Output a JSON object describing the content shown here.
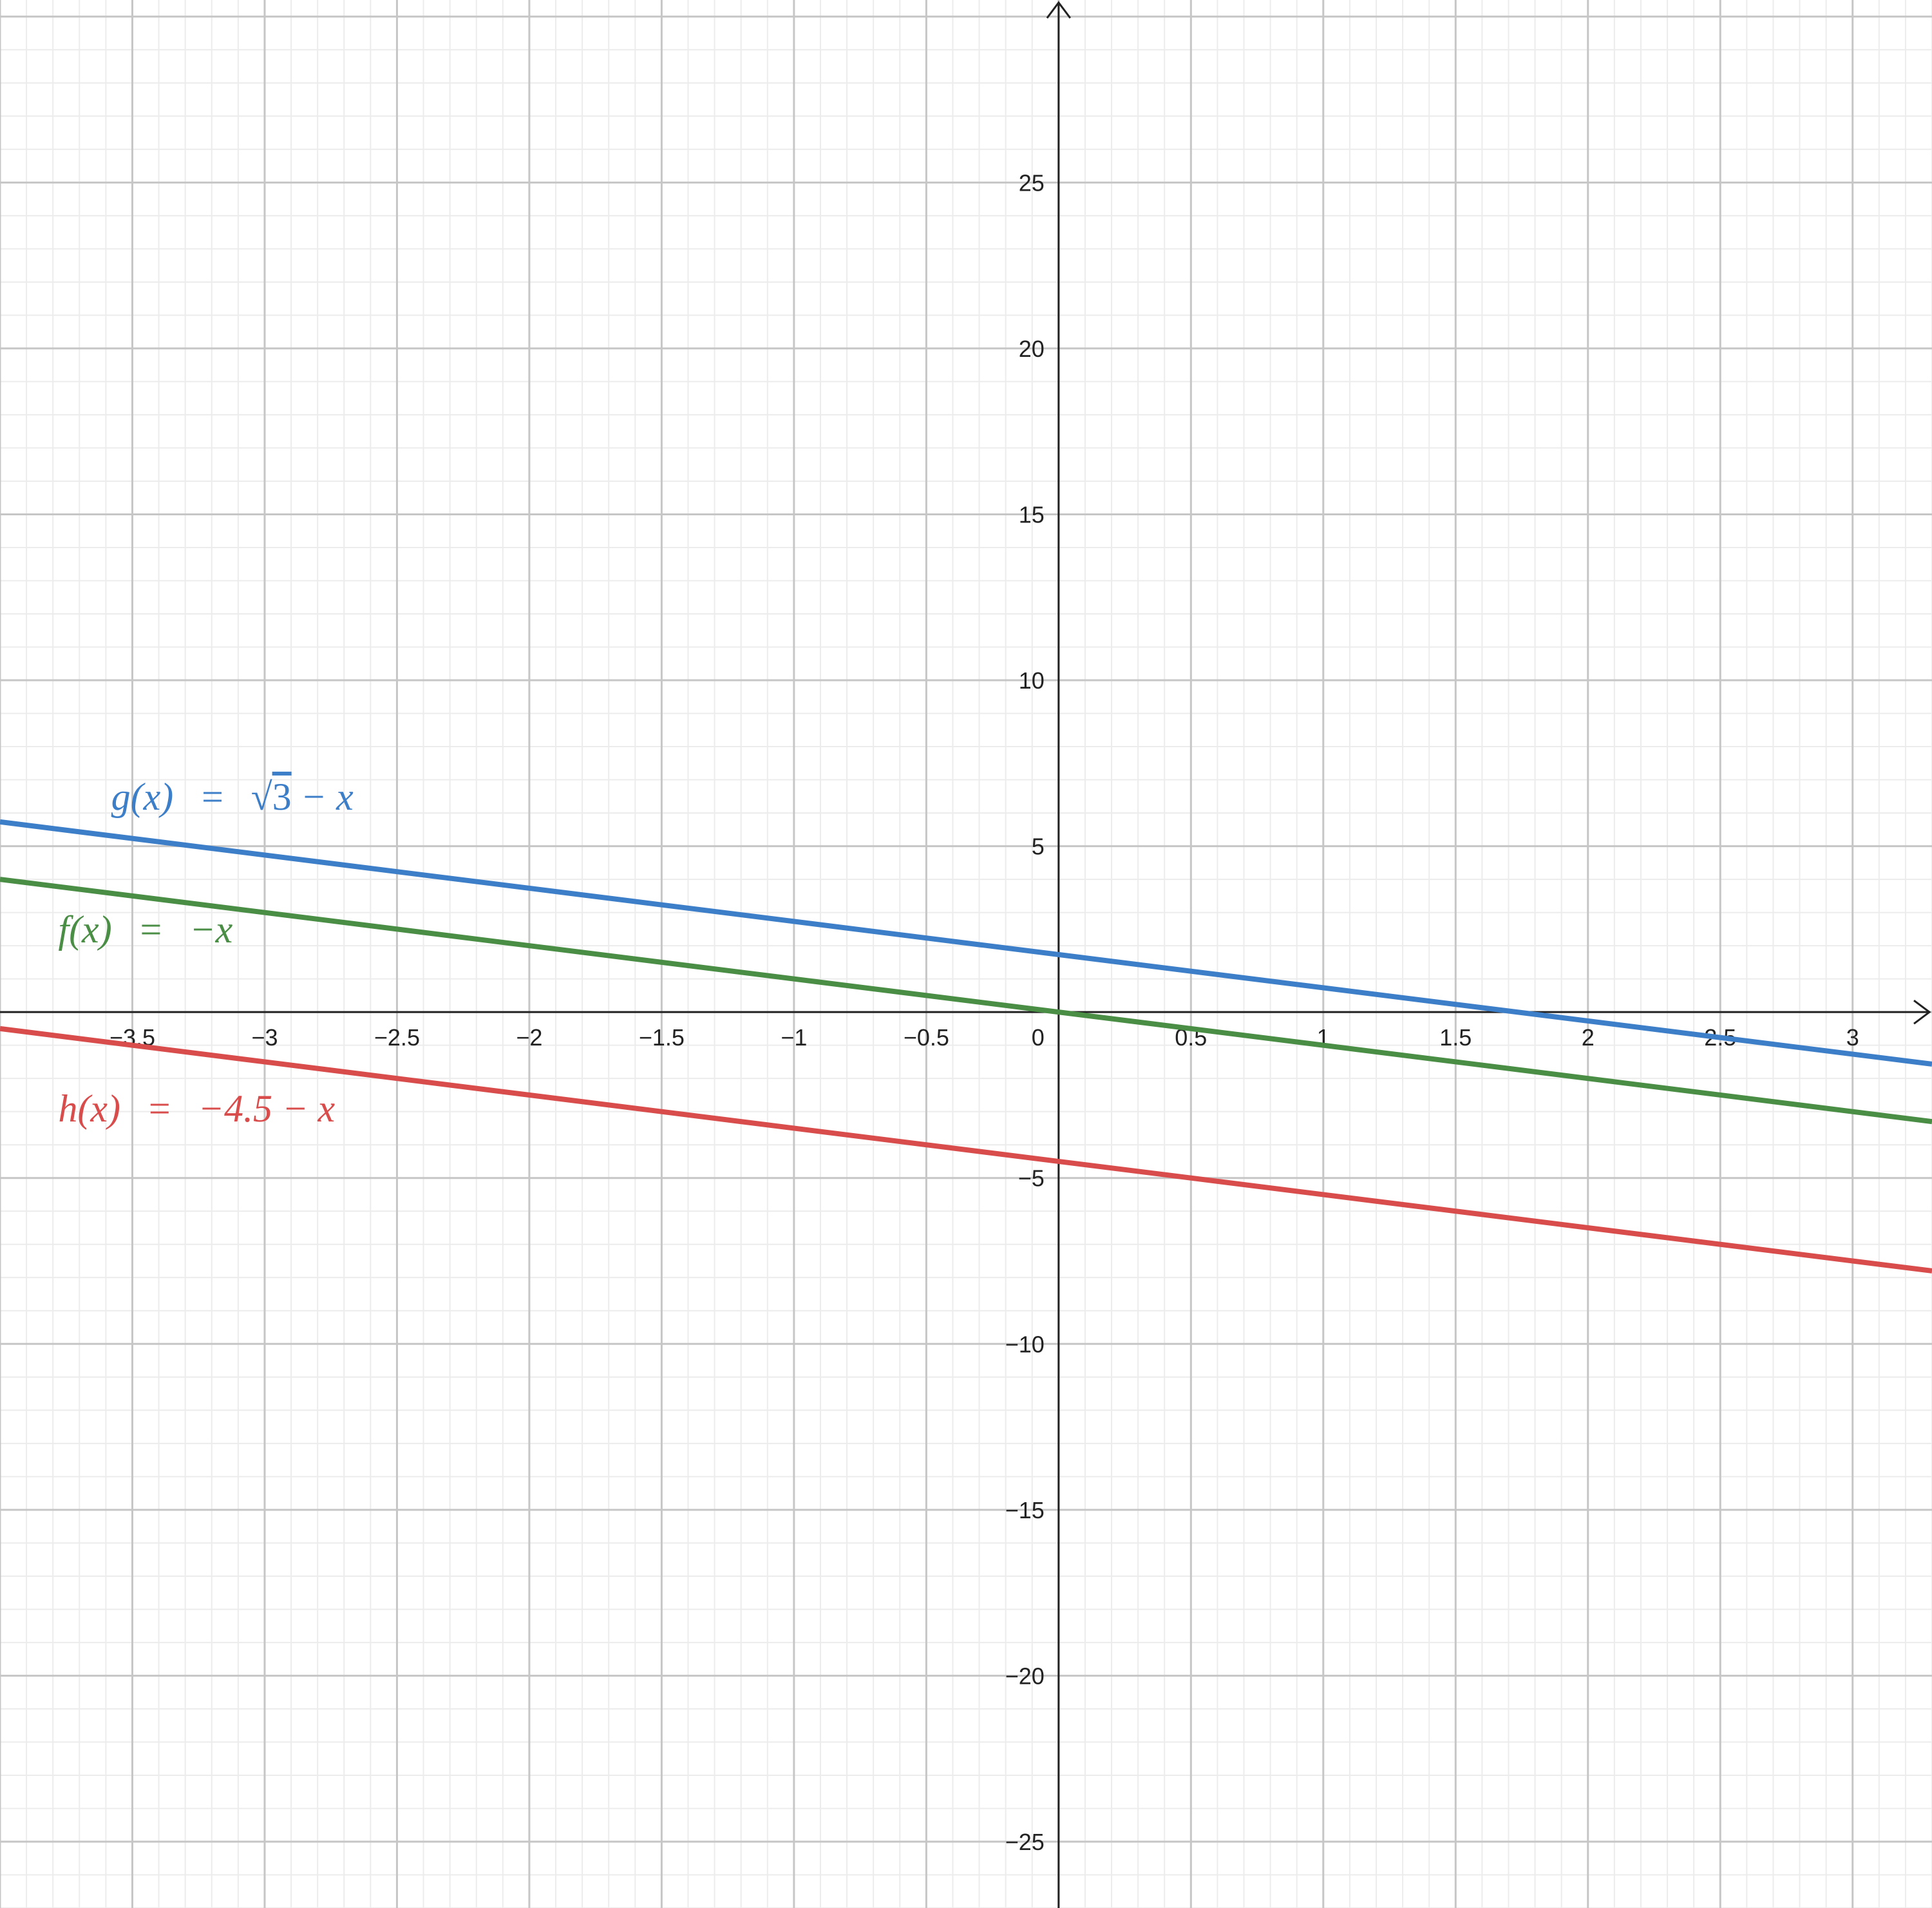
{
  "chart_data": {
    "type": "line",
    "title": "",
    "xlabel": "",
    "ylabel": "",
    "xlim": [
      -4.0,
      3.3
    ],
    "ylim": [
      -27.0,
      30.5
    ],
    "grid": true,
    "x_ticks": [
      {
        "value": -3.5,
        "label": "−3.5"
      },
      {
        "value": -3,
        "label": "−3"
      },
      {
        "value": -2.5,
        "label": "−2.5"
      },
      {
        "value": -2,
        "label": "−2"
      },
      {
        "value": -1.5,
        "label": "−1.5"
      },
      {
        "value": -1,
        "label": "−1"
      },
      {
        "value": -0.5,
        "label": "−0.5"
      },
      {
        "value": 0.5,
        "label": "0.5"
      },
      {
        "value": 1,
        "label": "1"
      },
      {
        "value": 1.5,
        "label": "1.5"
      },
      {
        "value": 2,
        "label": "2"
      },
      {
        "value": 2.5,
        "label": "2.5"
      },
      {
        "value": 3,
        "label": "3"
      }
    ],
    "y_ticks": [
      {
        "value": 25,
        "label": "25"
      },
      {
        "value": 20,
        "label": "20"
      },
      {
        "value": 15,
        "label": "15"
      },
      {
        "value": 10,
        "label": "10"
      },
      {
        "value": 5,
        "label": "5"
      },
      {
        "value": -5,
        "label": "−5"
      },
      {
        "value": -10,
        "label": "−10"
      },
      {
        "value": -15,
        "label": "−15"
      },
      {
        "value": -20,
        "label": "−20"
      },
      {
        "value": -25,
        "label": "−25"
      }
    ],
    "origin_label": "0",
    "series": [
      {
        "id": "g",
        "color": "#3d7ec9",
        "slope": -1,
        "intercept": 1.732,
        "label_parts": {
          "lhs": "g(x)",
          "eq": "=",
          "sqrt": "√",
          "radicand": "3",
          "rhs": "− x"
        },
        "label_anchor": {
          "x": -3.58,
          "y": 6.1
        },
        "points": [
          [
            -4.0,
            5.732
          ],
          [
            3.3,
            -1.568
          ]
        ]
      },
      {
        "id": "f",
        "color": "#4a8d45",
        "slope": -1,
        "intercept": 0,
        "label_parts": {
          "lhs": "f(x)",
          "eq": "=",
          "rhs": "−x"
        },
        "label_anchor": {
          "x": -3.78,
          "y": 2.1
        },
        "points": [
          [
            -4.0,
            4.0
          ],
          [
            3.3,
            -3.3
          ]
        ]
      },
      {
        "id": "h",
        "color": "#d94c4c",
        "slope": -1,
        "intercept": -4.5,
        "label_parts": {
          "lhs": "h(x)",
          "eq": "=",
          "rhs": "−4.5 − x"
        },
        "label_anchor": {
          "x": -3.78,
          "y": -3.3
        },
        "points": [
          [
            -4.0,
            -0.5
          ],
          [
            3.3,
            -7.8
          ]
        ]
      }
    ]
  }
}
